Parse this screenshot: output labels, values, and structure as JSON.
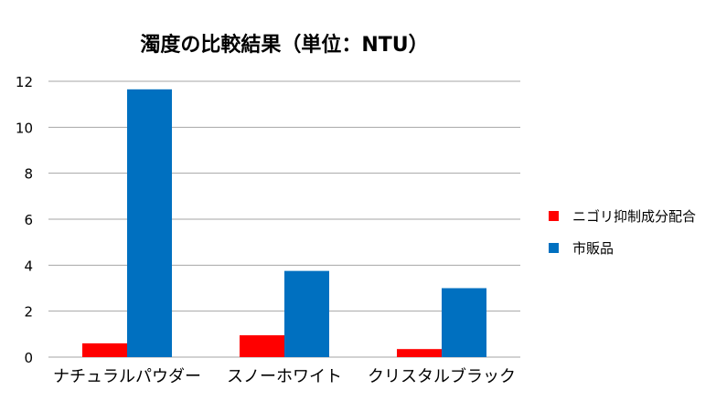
{
  "chart_data": {
    "type": "bar",
    "title": "濁度の比較結果（単位：NTU）",
    "categories": [
      "ナチュラルパウダー",
      "スノーホワイト",
      "クリスタルブラック"
    ],
    "series": [
      {
        "name": "ニゴリ抑制成分配合",
        "values": [
          0.6,
          0.95,
          0.35
        ],
        "color": "#ff0000"
      },
      {
        "name": "市販品",
        "values": [
          11.65,
          3.75,
          3.0
        ],
        "color": "#0070c0"
      }
    ],
    "yticks": [
      0,
      2,
      4,
      6,
      8,
      10,
      12
    ],
    "ylim": [
      0,
      12
    ],
    "grid": true,
    "legend_position": "right",
    "xlabel": "",
    "ylabel": ""
  }
}
